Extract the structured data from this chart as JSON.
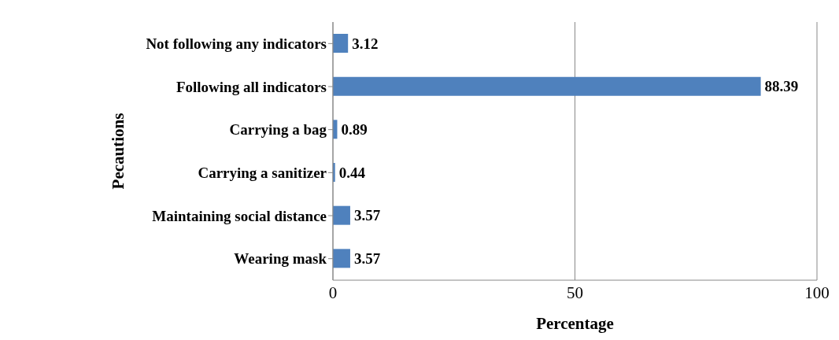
{
  "chart_data": {
    "type": "bar",
    "orientation": "horizontal",
    "xlabel": "Percentage",
    "ylabel": "Pecautions",
    "categories": [
      "Not following any indicators",
      "Following all indicators",
      "Carrying a bag",
      "Carrying a sanitizer",
      "Maintaining social distance",
      "Wearing mask"
    ],
    "values": [
      3.12,
      88.39,
      0.89,
      0.44,
      3.57,
      3.57
    ],
    "color": "#4f81bd",
    "xlim": [
      0,
      100
    ],
    "xticks": [
      0,
      50,
      100
    ],
    "grid": "x",
    "data_labels": true
  }
}
